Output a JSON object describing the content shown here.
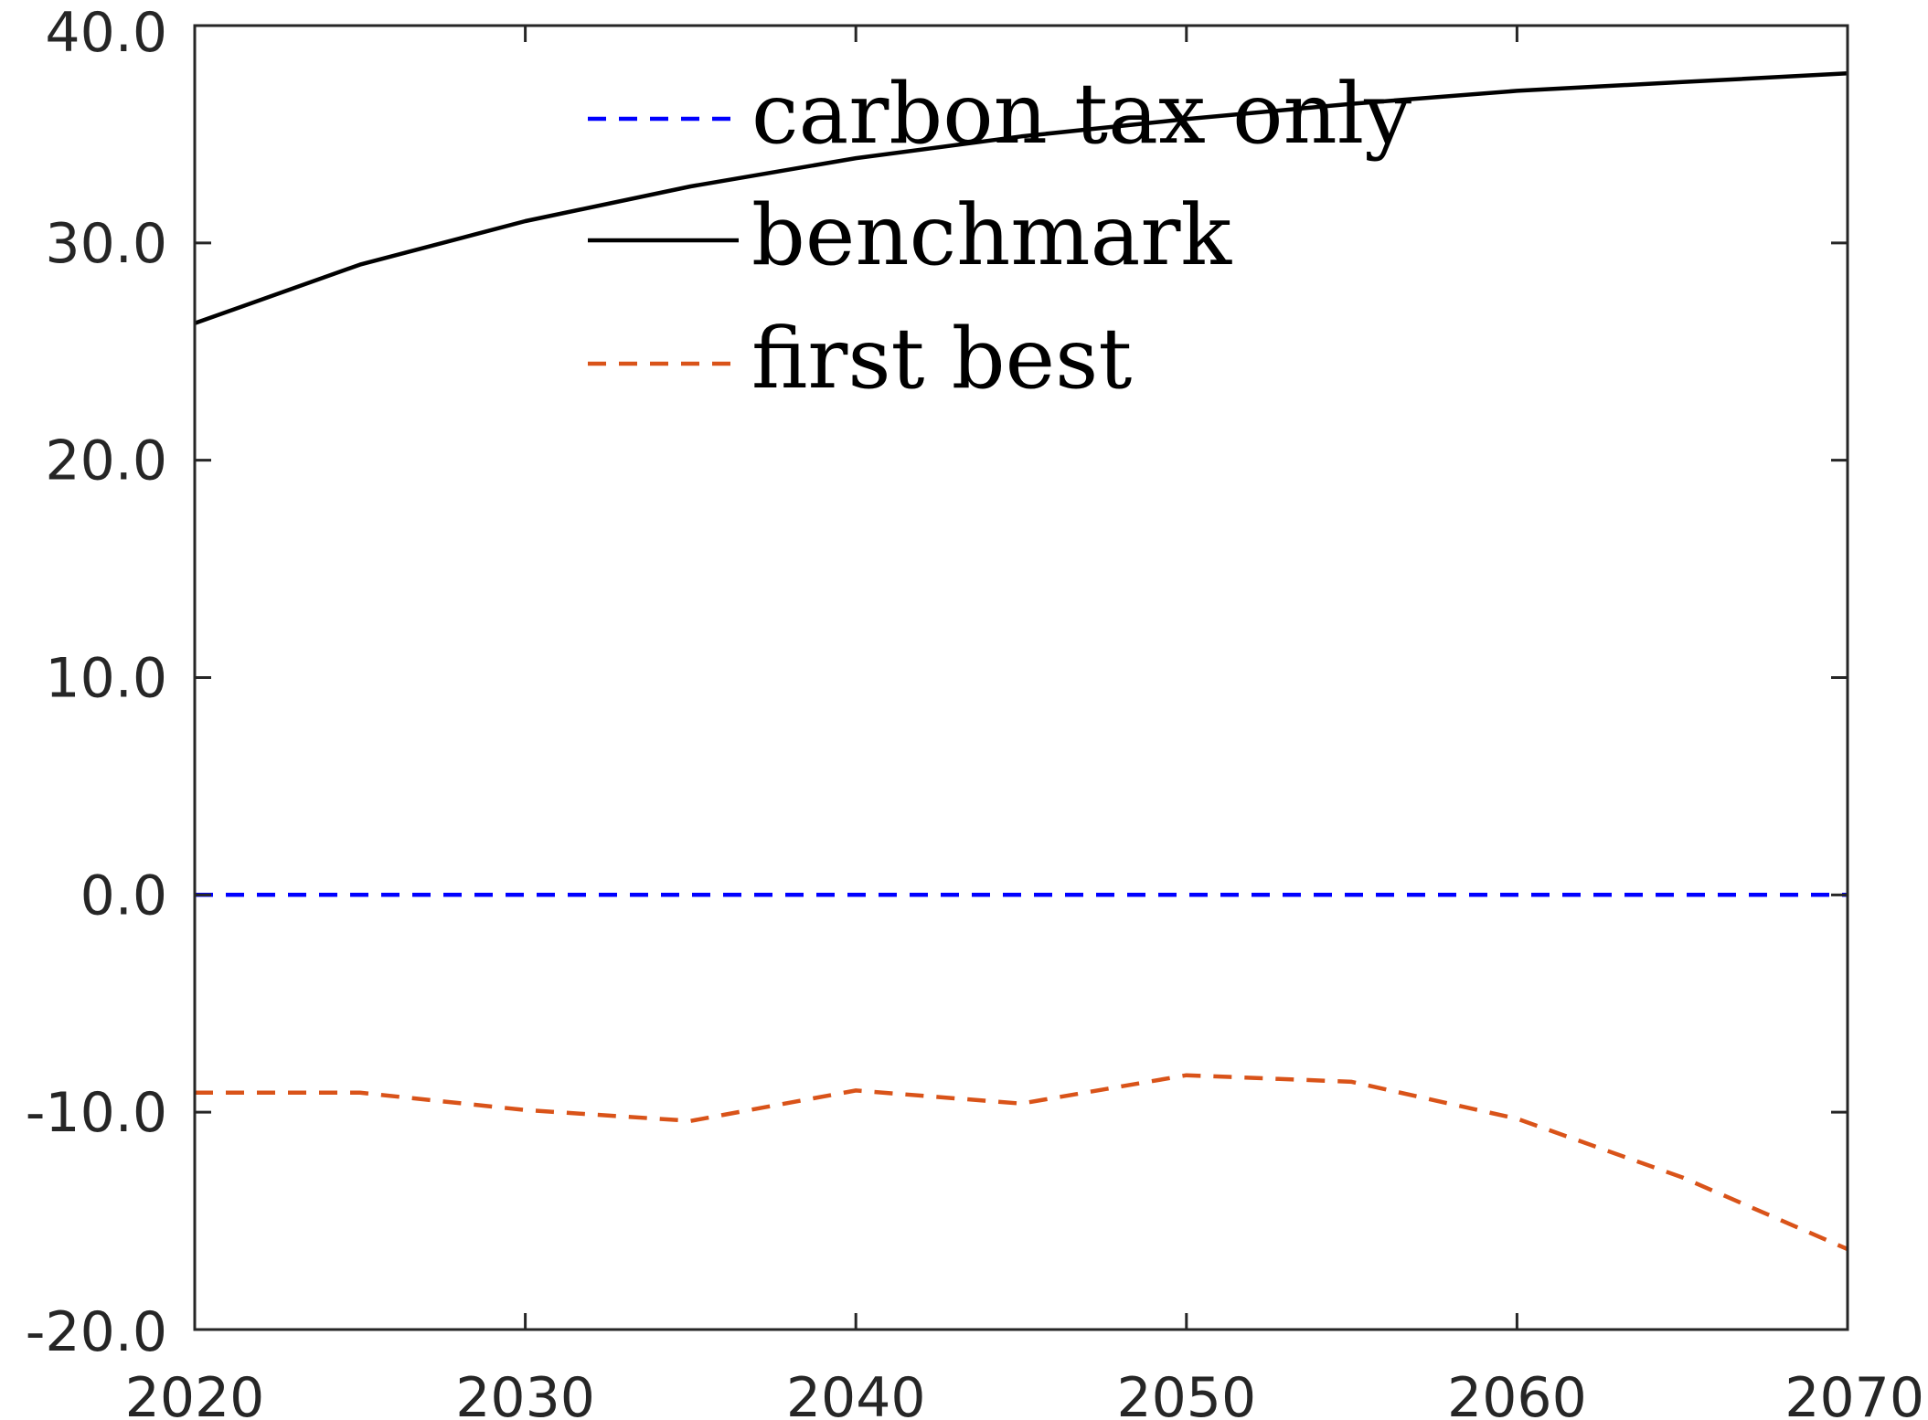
{
  "chart_data": {
    "type": "line",
    "title": "",
    "xlabel": "",
    "ylabel": "",
    "xlim": [
      2020,
      2070
    ],
    "ylim": [
      -20,
      40
    ],
    "xticks": [
      2020,
      2030,
      2040,
      2050,
      2060,
      2070
    ],
    "xtick_labels": [
      "2020",
      "2030",
      "2040",
      "2050",
      "2060",
      "2070"
    ],
    "yticks": [
      -20,
      -10,
      0,
      10,
      20,
      30,
      40
    ],
    "ytick_labels": [
      "-20.0",
      "-10.0",
      "0.0",
      "10.0",
      "20.0",
      "30.0",
      "40.0"
    ],
    "grid": false,
    "legend_position": "top-center",
    "x": [
      2020,
      2025,
      2030,
      2035,
      2040,
      2045,
      2050,
      2055,
      2060,
      2065,
      2070
    ],
    "series": [
      {
        "name": "carbon tax only",
        "color": "#0000ff",
        "style": "dashed",
        "values": [
          0,
          0,
          0,
          0,
          0,
          0,
          0,
          0,
          0,
          0,
          0
        ]
      },
      {
        "name": "benchmark",
        "color": "#000000",
        "style": "solid",
        "values": [
          26.3,
          29.0,
          31.0,
          32.6,
          33.9,
          34.9,
          35.7,
          36.4,
          37.0,
          37.4,
          37.8
        ]
      },
      {
        "name": "first best",
        "color": "#d95319",
        "style": "dashed",
        "values": [
          -9.1,
          -9.1,
          -9.9,
          -10.4,
          -9.0,
          -9.6,
          -8.3,
          -8.6,
          -10.3,
          -13.0,
          -16.3
        ]
      }
    ]
  }
}
